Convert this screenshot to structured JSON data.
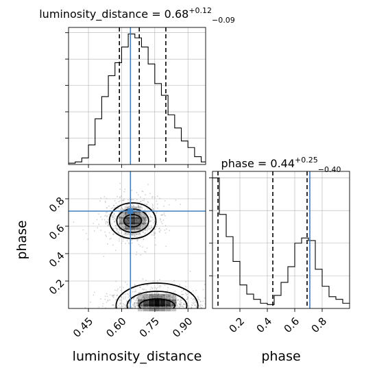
{
  "chart_data": [
    {
      "type": "histogram",
      "panel": "luminosity_distance-marginal",
      "parameter": "luminosity_distance",
      "median": 0.68,
      "err_plus": 0.12,
      "err_minus": 0.09,
      "title_text": "luminosity_distance = 0.68",
      "title_sup": "+0.12",
      "title_sub": "−0.09",
      "xlim": [
        0.36,
        0.98
      ],
      "bin_edges": [
        0.36,
        0.39,
        0.42,
        0.45,
        0.48,
        0.51,
        0.54,
        0.57,
        0.6,
        0.63,
        0.66,
        0.69,
        0.72,
        0.75,
        0.78,
        0.81,
        0.84,
        0.87,
        0.9,
        0.93,
        0.96,
        0.98
      ],
      "counts": [
        1,
        2,
        5,
        15,
        35,
        52,
        68,
        78,
        90,
        100,
        97,
        90,
        77,
        62,
        53,
        38,
        28,
        18,
        13,
        6,
        2
      ],
      "quantiles": [
        0.59,
        0.68,
        0.8
      ],
      "truth": 0.64
    },
    {
      "type": "histogram",
      "panel": "phase-marginal",
      "parameter": "phase",
      "median": 0.44,
      "err_plus": 0.25,
      "err_minus": 0.4,
      "title_text": "phase = 0.44",
      "title_sup": "+0.25",
      "title_sub": "−0.40",
      "xlim": [
        0.0,
        1.0
      ],
      "xticks": [
        0.2,
        0.4,
        0.6,
        0.8
      ],
      "xtick_labels": [
        "0.2",
        "0.4",
        "0.6",
        "0.8"
      ],
      "xlabel": "phase",
      "bin_edges": [
        0,
        0.05,
        0.1,
        0.15,
        0.2,
        0.25,
        0.3,
        0.35,
        0.4,
        0.45,
        0.5,
        0.55,
        0.6,
        0.65,
        0.7,
        0.75,
        0.8,
        0.85,
        0.9,
        0.95,
        1.0
      ],
      "counts": [
        100,
        72,
        55,
        36,
        18,
        11,
        7,
        4,
        3,
        10,
        20,
        32,
        50,
        54,
        52,
        30,
        17,
        9,
        7,
        4
      ],
      "quantiles": [
        0.04,
        0.44,
        0.69
      ],
      "truth": 0.71
    },
    {
      "type": "scatter-contour",
      "panel": "joint",
      "xlim": [
        0.36,
        0.98
      ],
      "ylim": [
        0.0,
        1.0
      ],
      "xticks": [
        0.45,
        0.6,
        0.75,
        0.9
      ],
      "xtick_labels": [
        "0.45",
        "0.60",
        "0.75",
        "0.90"
      ],
      "yticks": [
        0.2,
        0.4,
        0.6,
        0.8
      ],
      "ytick_labels": [
        "0.2",
        "0.4",
        "0.6",
        "0.8"
      ],
      "xlabel": "luminosity_distance",
      "ylabel": "phase",
      "truth": [
        0.64,
        0.71
      ],
      "modes": [
        {
          "center": [
            0.65,
            0.64
          ],
          "sx": 0.07,
          "sy": 0.09,
          "weight": 0.5
        },
        {
          "center": [
            0.76,
            0.04
          ],
          "sx": 0.11,
          "sy": 0.06,
          "weight": 0.5
        }
      ],
      "contour_levels": [
        [
          {
            "cx": 0.65,
            "cy": 0.64,
            "rx": 0.04,
            "ry": 0.045
          },
          {
            "cx": 0.65,
            "cy": 0.64,
            "rx": 0.072,
            "ry": 0.085
          },
          {
            "cx": 0.65,
            "cy": 0.64,
            "rx": 0.105,
            "ry": 0.13
          }
        ],
        [
          {
            "cx": 0.76,
            "cy": 0.02,
            "rx": 0.08,
            "ry": 0.05
          },
          {
            "cx": 0.76,
            "cy": 0.02,
            "rx": 0.135,
            "ry": 0.105
          },
          {
            "cx": 0.76,
            "cy": 0.02,
            "rx": 0.185,
            "ry": 0.165
          }
        ]
      ]
    }
  ],
  "colors": {
    "truth": "#3f7fbf",
    "ink": "#000000",
    "grid": "#b0b0b0",
    "points": "#9a9a9a"
  }
}
